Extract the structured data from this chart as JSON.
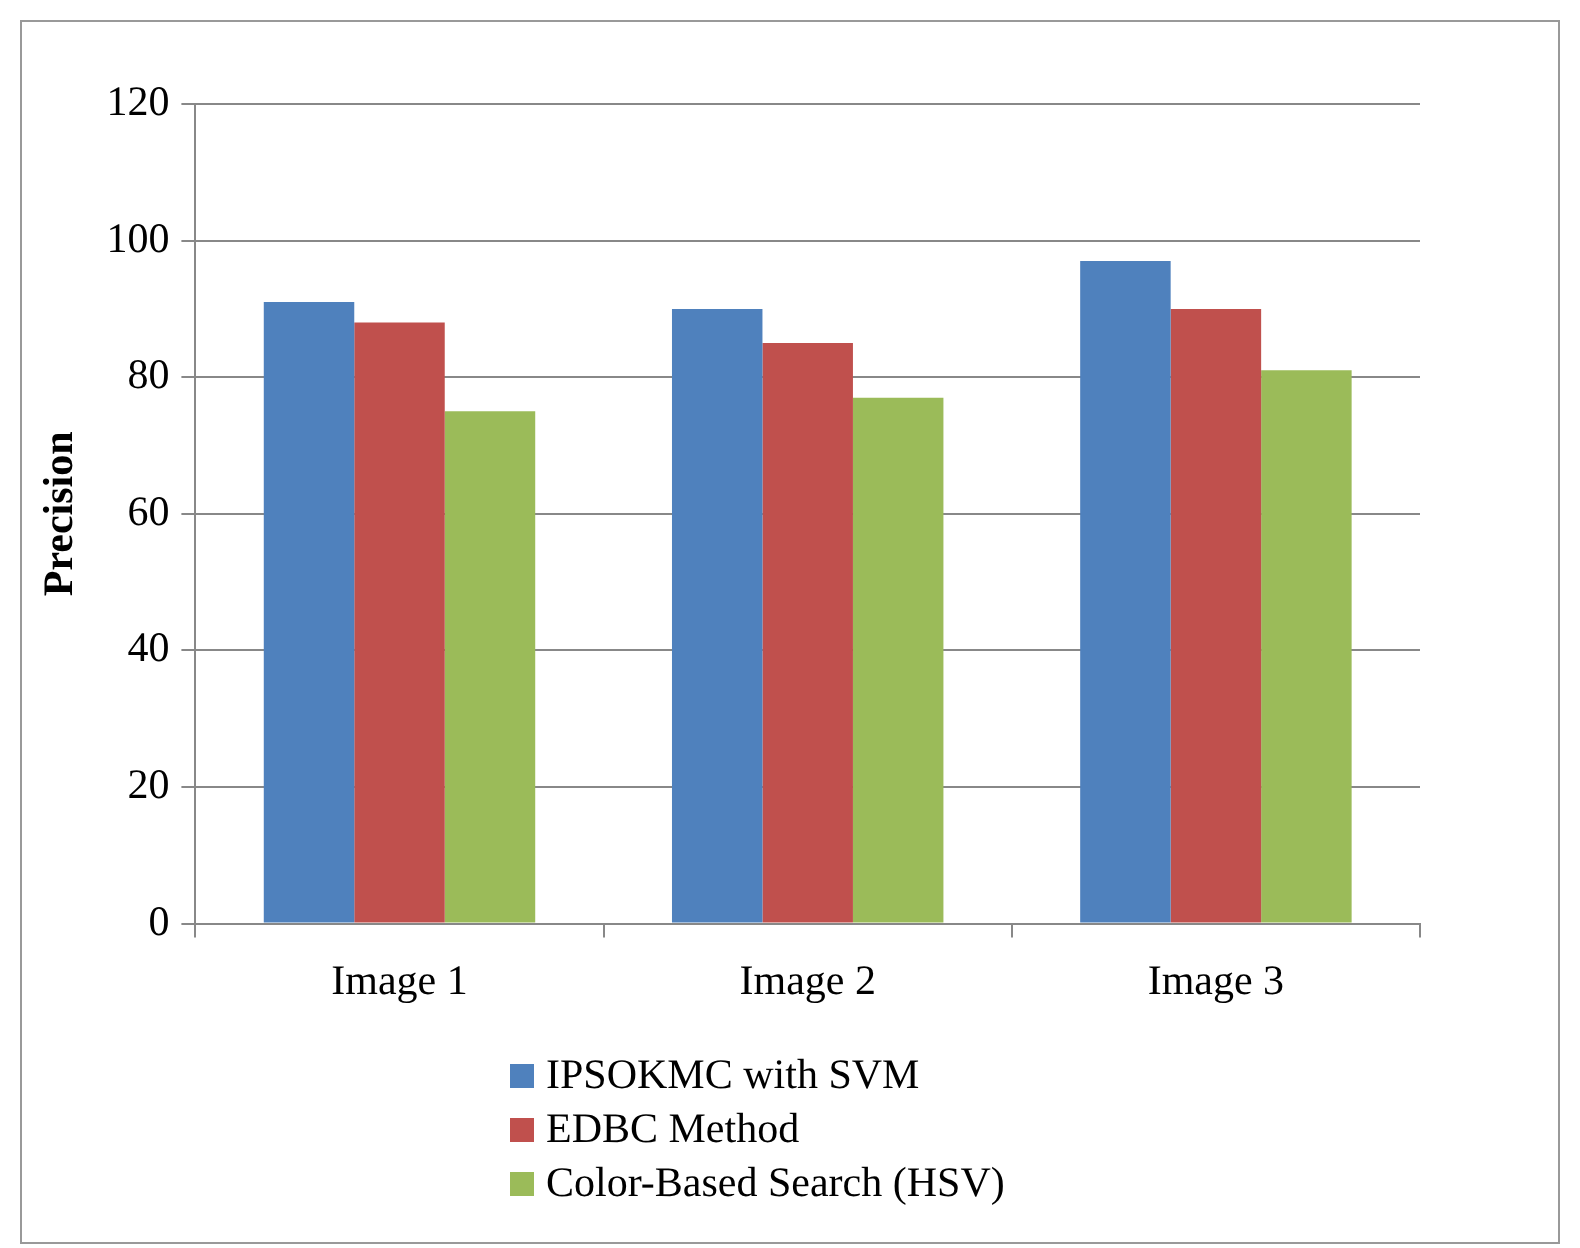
{
  "chart_data": {
    "type": "bar",
    "ylabel": "Precision",
    "categories": [
      "Image 1",
      "Image 2",
      "Image 3"
    ],
    "series": [
      {
        "name": "IPSOKMC with SVM",
        "color": "#4f81bd",
        "values": [
          91,
          90,
          97
        ]
      },
      {
        "name": "EDBC Method",
        "color": "#c0504d",
        "values": [
          88,
          85,
          90
        ]
      },
      {
        "name": "Color-Based Search (HSV)",
        "color": "#9bbb59",
        "values": [
          75,
          77,
          81
        ]
      }
    ],
    "ylim": [
      0,
      120
    ],
    "yticks": [
      0,
      20,
      40,
      60,
      80,
      100,
      120
    ],
    "grid": "y",
    "legend": "bottom"
  }
}
